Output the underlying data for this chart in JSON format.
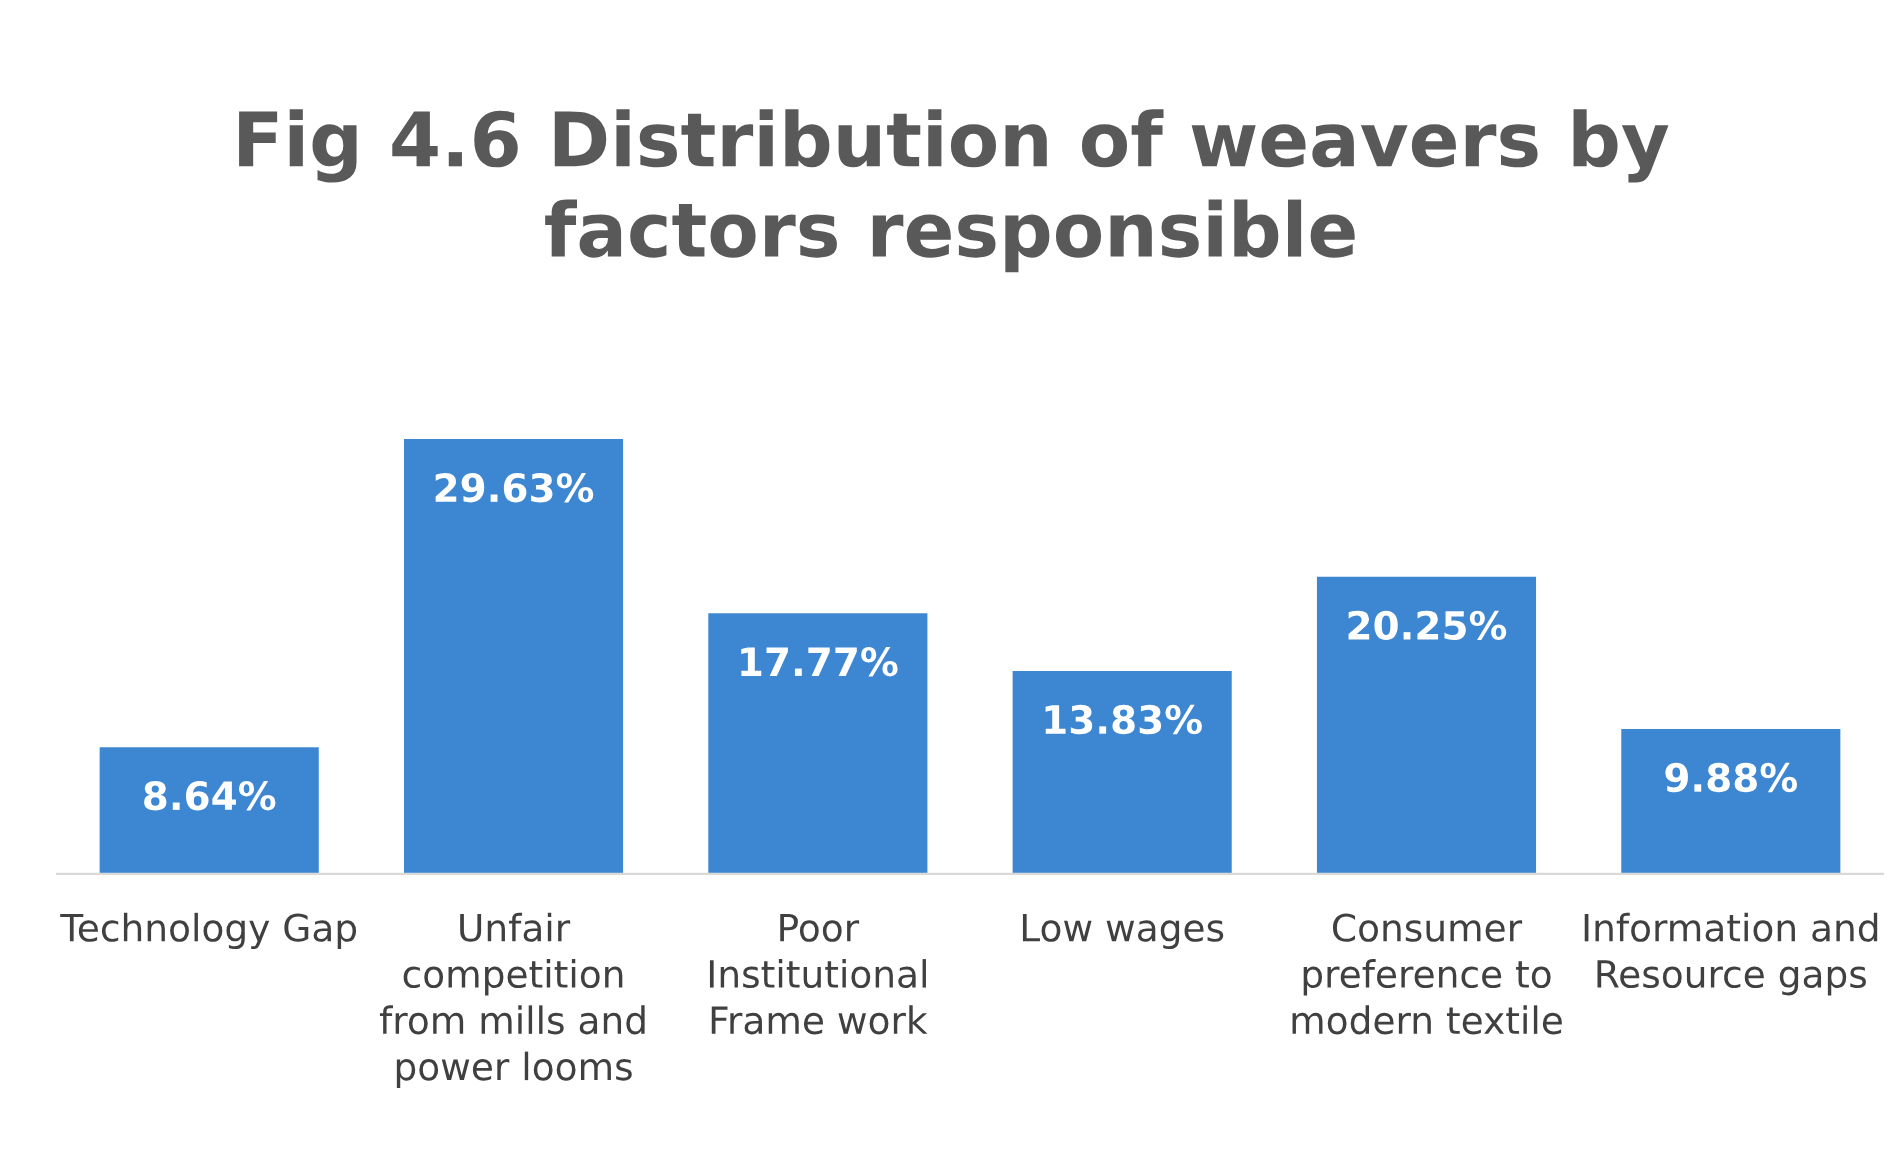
{
  "chart_data": {
    "type": "bar",
    "title": "Fig 4.6 Distribution of weavers by factors responsible",
    "categories": [
      "Technology Gap",
      "Unfair competition from mills and power looms",
      "Poor Institutional Frame work",
      "Low wages",
      "Consumer preference to modern textile",
      "Information and Resource gaps"
    ],
    "values": [
      8.64,
      29.63,
      17.77,
      13.83,
      20.25,
      9.88
    ],
    "value_labels": [
      "8.64%",
      "29.63%",
      "17.77%",
      "13.83%",
      "20.25%",
      "9.88%"
    ],
    "color": "#3d87d2",
    "grid": false,
    "legend": false
  }
}
